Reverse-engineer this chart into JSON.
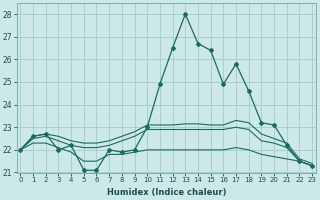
{
  "xlabel": "Humidex (Indice chaleur)",
  "background_color": "#cce8e8",
  "grid_color": "#aacece",
  "line_color": "#1a6b5f",
  "xlim_min": -0.3,
  "xlim_max": 23.3,
  "ylim_min": 21.0,
  "ylim_max": 28.5,
  "yticks": [
    21,
    22,
    23,
    24,
    25,
    26,
    27,
    28
  ],
  "xticks": [
    0,
    1,
    2,
    3,
    4,
    5,
    6,
    7,
    8,
    9,
    10,
    11,
    12,
    13,
    14,
    15,
    16,
    17,
    18,
    19,
    20,
    21,
    22,
    23
  ],
  "line1_y": [
    22.0,
    22.6,
    22.7,
    22.0,
    22.2,
    21.1,
    21.1,
    22.0,
    21.9,
    22.0,
    23.0,
    24.9,
    26.5,
    28.0,
    26.7,
    26.4,
    24.9,
    25.8,
    24.6,
    23.2,
    23.1,
    22.2,
    21.5,
    21.3
  ],
  "line2_y": [
    22.0,
    22.6,
    22.7,
    22.6,
    22.4,
    22.3,
    22.3,
    22.4,
    22.6,
    22.8,
    23.1,
    23.1,
    23.1,
    23.15,
    23.15,
    23.1,
    23.1,
    23.3,
    23.2,
    22.7,
    22.5,
    22.3,
    21.6,
    21.4
  ],
  "line3_y": [
    22.0,
    22.5,
    22.6,
    22.4,
    22.2,
    22.1,
    22.1,
    22.2,
    22.4,
    22.6,
    22.9,
    22.9,
    22.9,
    22.9,
    22.9,
    22.9,
    22.9,
    23.0,
    22.9,
    22.4,
    22.3,
    22.1,
    21.5,
    21.3
  ],
  "line4_y": [
    22.0,
    22.3,
    22.3,
    22.1,
    21.9,
    21.5,
    21.5,
    21.8,
    21.8,
    21.9,
    22.0,
    22.0,
    22.0,
    22.0,
    22.0,
    22.0,
    22.0,
    22.1,
    22.0,
    21.8,
    21.7,
    21.6,
    21.5,
    21.3
  ]
}
